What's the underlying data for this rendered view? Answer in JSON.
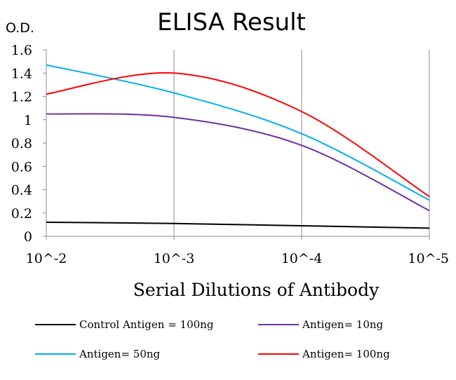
{
  "chart_data": {
    "type": "line",
    "title": "ELISA Result",
    "ylabel": "O.D.",
    "xlabel": "Serial Dilutions of Antibody",
    "categories": [
      "10^-2",
      "10^-3",
      "10^-4",
      "10^-5"
    ],
    "ylim": [
      0,
      1.6
    ],
    "yticks": [
      "0",
      "0.2",
      "0.4",
      "0.6",
      "0.8",
      "1",
      "1.2",
      "1.4",
      "1.6"
    ],
    "grid": "vertical",
    "legend_position": "bottom",
    "series": [
      {
        "name": "Control Antigen = 100ng",
        "color": "#000000",
        "values": [
          0.12,
          0.11,
          0.09,
          0.07
        ]
      },
      {
        "name": "Antigen= 10ng",
        "color": "#7030a0",
        "values": [
          1.05,
          1.02,
          0.78,
          0.22
        ]
      },
      {
        "name": "Antigen= 50ng",
        "color": "#00b0f0",
        "values": [
          1.47,
          1.23,
          0.88,
          0.31
        ]
      },
      {
        "name": "Antigen= 100ng",
        "color": "#ff0000",
        "values": [
          1.22,
          1.4,
          1.07,
          0.34
        ]
      }
    ]
  }
}
